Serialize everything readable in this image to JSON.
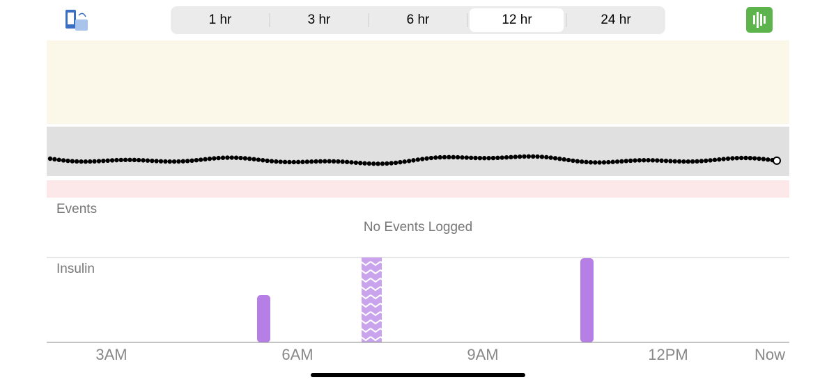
{
  "tabs": [
    "1 hr",
    "3 hr",
    "6 hr",
    "12 hr",
    "24 hr"
  ],
  "events": {
    "title": "Events",
    "empty_message": "No Events Logged"
  },
  "insulin": {
    "title": "Insulin"
  },
  "x_labels": [
    "3AM",
    "6AM",
    "9AM",
    "12PM",
    "Now"
  ]
}
